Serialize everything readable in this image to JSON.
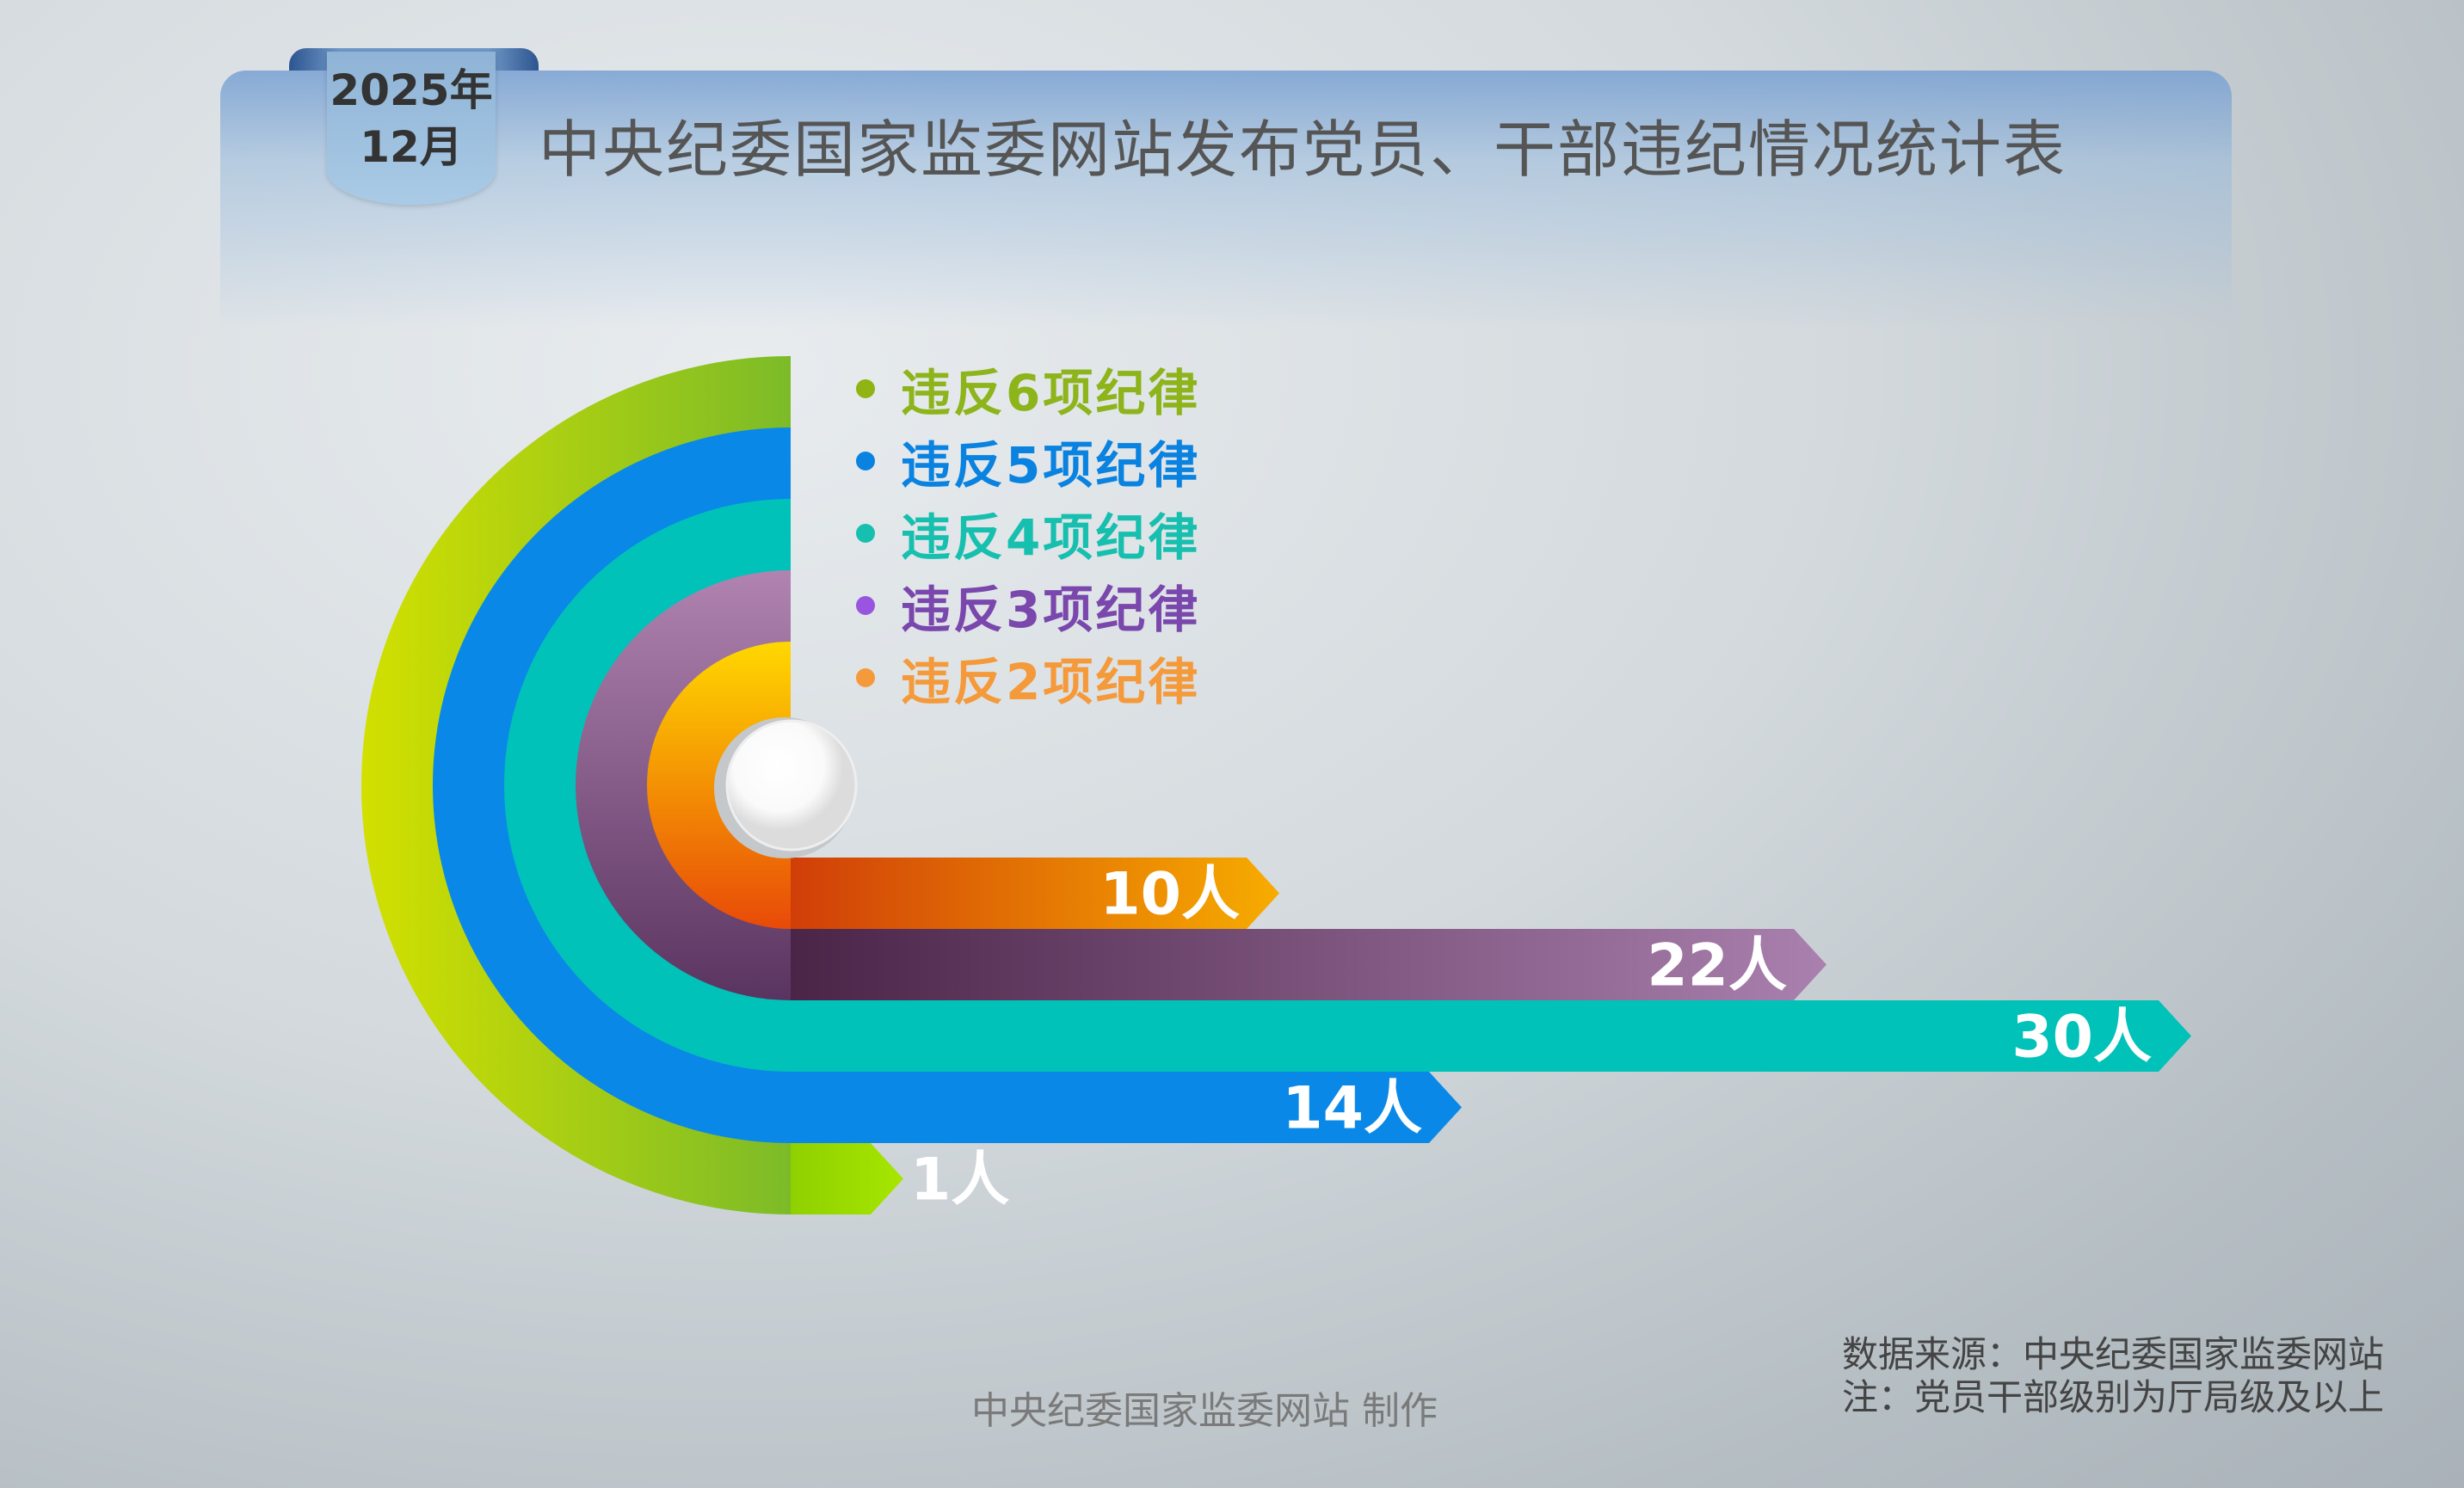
{
  "badge": {
    "year": "2025年",
    "month": "12月"
  },
  "title": "中央纪委国家监委网站发布党员、干部违纪情况统计表",
  "chart_data": {
    "type": "bar",
    "categories": [
      "违反6项纪律",
      "违反5项纪律",
      "违反4项纪律",
      "违反3项纪律",
      "违反2项纪律"
    ],
    "values": [
      1,
      14,
      30,
      22,
      10
    ],
    "unit": "人",
    "labels": [
      "1人",
      "14人",
      "30人",
      "22人",
      "10人"
    ],
    "colors": [
      "#9ccc14",
      "#0a88e8",
      "#00c2b8",
      "#8a5a8e",
      "#ef7a10"
    ],
    "legend_colors": [
      "#8db41a",
      "#0a82e0",
      "#17bfae",
      "#7a47ad",
      "#f59a3a"
    ],
    "legend_dot_colors": [
      "#8fb414",
      "#0a82e0",
      "#17bfae",
      "#9a55e0",
      "#f59a3a"
    ],
    "legend": "top-right of rings"
  },
  "footer": {
    "credit": "中央纪委国家监委网站 制作",
    "source": "数据来源：中央纪委国家监委网站",
    "note": "注：党员干部级别为厅局级及以上"
  }
}
